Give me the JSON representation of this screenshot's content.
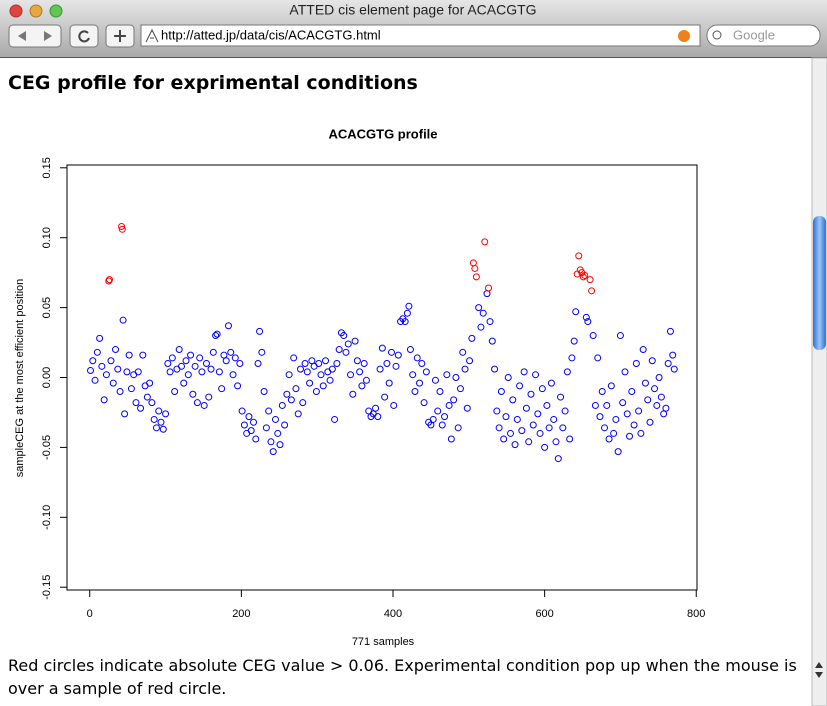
{
  "window": {
    "title": "ATTED cis element page for ACACGTG"
  },
  "browser": {
    "url": "http://atted.jp/data/cis/ACACGTG.html",
    "search_placeholder": "Google"
  },
  "page": {
    "heading": "CEG profile for exprimental conditions",
    "caption": "Red circles indicate absolute CEG value > 0.06. Experimental condition pop up when the mouse is over a sample of red circle."
  },
  "chart_data": {
    "type": "scatter",
    "title": "ACACGTG profile",
    "x_label": "771 samples",
    "y_label": "sampleCEG at the most efficient position",
    "color": "#0000ff",
    "highlight_color": "#ff0000",
    "highlight_threshold": 0.06,
    "xlim": [
      -30,
      801
    ],
    "ylim": [
      -0.152,
      0.152
    ],
    "xticks": [
      0,
      200,
      400,
      600,
      800
    ],
    "yticks": [
      -0.15,
      {
        "value": -0.1,
        "label": "-0.10"
      },
      -0.05,
      {
        "value": 0,
        "label": "0.00"
      },
      0.05,
      {
        "value": 0.1,
        "label": "0.10"
      },
      0.15
    ],
    "x": [
      1,
      4,
      7,
      10,
      13,
      16,
      19,
      22,
      25,
      26,
      28,
      31,
      34,
      37,
      40,
      42,
      43,
      44,
      46,
      49,
      52,
      55,
      58,
      61,
      64,
      67,
      70,
      73,
      76,
      79,
      82,
      85,
      88,
      91,
      94,
      97,
      100,
      103,
      106,
      109,
      112,
      115,
      118,
      121,
      124,
      127,
      130,
      133,
      136,
      139,
      142,
      145,
      148,
      151,
      154,
      157,
      160,
      163,
      166,
      168,
      171,
      174,
      177,
      180,
      183,
      186,
      189,
      192,
      195,
      198,
      201,
      204,
      207,
      210,
      213,
      216,
      219,
      222,
      224,
      227,
      230,
      233,
      236,
      239,
      242,
      245,
      248,
      251,
      254,
      257,
      260,
      263,
      266,
      269,
      272,
      275,
      278,
      281,
      284,
      287,
      290,
      293,
      296,
      299,
      302,
      305,
      308,
      311,
      314,
      317,
      320,
      323,
      326,
      329,
      332,
      335,
      338,
      341,
      344,
      347,
      350,
      353,
      356,
      359,
      362,
      365,
      368,
      371,
      374,
      377,
      380,
      383,
      386,
      389,
      392,
      395,
      398,
      401,
      404,
      407,
      410,
      413,
      416,
      419,
      421,
      423,
      426,
      429,
      432,
      435,
      438,
      441,
      444,
      447,
      450,
      453,
      456,
      459,
      462,
      465,
      468,
      471,
      474,
      477,
      480,
      483,
      486,
      489,
      492,
      495,
      498,
      501,
      504,
      506,
      508,
      510,
      513,
      516,
      519,
      521,
      524,
      526,
      528,
      531,
      534,
      537,
      540,
      543,
      546,
      549,
      552,
      555,
      558,
      561,
      564,
      567,
      570,
      573,
      576,
      579,
      582,
      585,
      588,
      591,
      594,
      597,
      600,
      603,
      606,
      609,
      612,
      615,
      618,
      621,
      624,
      627,
      630,
      633,
      636,
      639,
      641,
      643,
      645,
      647,
      649,
      651,
      653,
      655,
      657,
      660,
      662,
      664,
      667,
      670,
      673,
      676,
      679,
      682,
      685,
      688,
      691,
      694,
      697,
      700,
      703,
      706,
      709,
      712,
      715,
      718,
      721,
      724,
      727,
      730,
      733,
      736,
      739,
      742,
      745,
      748,
      751,
      754,
      757,
      760,
      763,
      766,
      769,
      771
    ],
    "values": [
      0.005,
      0.012,
      -0.002,
      0.018,
      0.028,
      0.008,
      -0.016,
      0.002,
      0.069,
      0.07,
      0.012,
      -0.004,
      0.02,
      0.006,
      -0.01,
      0.108,
      0.106,
      0.041,
      -0.026,
      0.004,
      0.016,
      -0.008,
      0.002,
      -0.018,
      0.004,
      -0.022,
      0.016,
      -0.006,
      -0.014,
      -0.004,
      -0.018,
      -0.03,
      -0.036,
      -0.024,
      -0.032,
      -0.037,
      -0.026,
      0.01,
      0.004,
      0.014,
      -0.01,
      0.006,
      0.02,
      0.008,
      -0.004,
      0.012,
      0.002,
      0.016,
      -0.012,
      0.008,
      -0.018,
      0.014,
      0.004,
      -0.02,
      0.01,
      -0.014,
      0.006,
      0.018,
      0.03,
      0.031,
      0.004,
      -0.008,
      0.016,
      0.012,
      0.037,
      0.018,
      0.002,
      0.014,
      -0.006,
      0.01,
      -0.024,
      -0.034,
      -0.04,
      -0.028,
      -0.038,
      -0.032,
      -0.044,
      0.01,
      0.033,
      0.018,
      -0.01,
      -0.036,
      -0.024,
      -0.046,
      -0.053,
      -0.03,
      -0.04,
      -0.048,
      -0.02,
      -0.034,
      -0.012,
      0.002,
      -0.016,
      0.014,
      -0.008,
      -0.026,
      0.006,
      -0.018,
      0.01,
      0.004,
      -0.004,
      0.012,
      0.008,
      -0.01,
      0.01,
      0.002,
      -0.006,
      0.012,
      0.004,
      -0.002,
      0.006,
      -0.03,
      0.01,
      0.02,
      0.032,
      0.03,
      0.018,
      0.024,
      0.002,
      -0.012,
      0.026,
      0.012,
      0.004,
      -0.006,
      0.01,
      -0.002,
      -0.024,
      -0.028,
      -0.026,
      -0.022,
      -0.028,
      0.006,
      0.021,
      -0.014,
      0.01,
      -0.004,
      0.018,
      -0.02,
      0.008,
      0.016,
      0.04,
      0.042,
      0.04,
      0.046,
      0.051,
      0.02,
      0.002,
      -0.01,
      0.014,
      -0.004,
      0.01,
      -0.018,
      0.004,
      -0.032,
      -0.034,
      -0.03,
      -0.002,
      -0.024,
      -0.01,
      -0.034,
      -0.028,
      0.002,
      -0.02,
      -0.044,
      -0.016,
      0.0,
      -0.036,
      -0.008,
      0.018,
      0.006,
      -0.022,
      0.012,
      0.028,
      0.082,
      0.078,
      0.072,
      0.05,
      0.036,
      0.046,
      0.097,
      0.06,
      0.064,
      0.04,
      0.026,
      0.006,
      -0.024,
      -0.036,
      -0.01,
      -0.044,
      -0.028,
      0.0,
      -0.04,
      -0.016,
      -0.048,
      -0.03,
      -0.006,
      -0.038,
      0.004,
      -0.022,
      -0.046,
      -0.012,
      -0.034,
      0.002,
      -0.026,
      -0.04,
      -0.008,
      -0.05,
      -0.02,
      -0.036,
      -0.004,
      -0.03,
      -0.046,
      -0.058,
      -0.014,
      -0.036,
      -0.024,
      0.004,
      -0.044,
      0.014,
      0.026,
      0.047,
      0.074,
      0.087,
      0.077,
      0.075,
      0.072,
      0.073,
      0.043,
      0.04,
      0.07,
      0.062,
      0.03,
      -0.02,
      0.014,
      -0.028,
      -0.01,
      -0.036,
      -0.02,
      -0.044,
      -0.006,
      -0.04,
      -0.03,
      -0.053,
      0.03,
      -0.018,
      0.004,
      -0.026,
      -0.042,
      -0.01,
      -0.034,
      0.01,
      -0.024,
      -0.04,
      0.02,
      -0.004,
      -0.016,
      -0.032,
      0.012,
      -0.008,
      -0.02,
      0.0,
      -0.014,
      -0.026,
      -0.022,
      0.01,
      0.033,
      0.016,
      0.006
    ]
  }
}
